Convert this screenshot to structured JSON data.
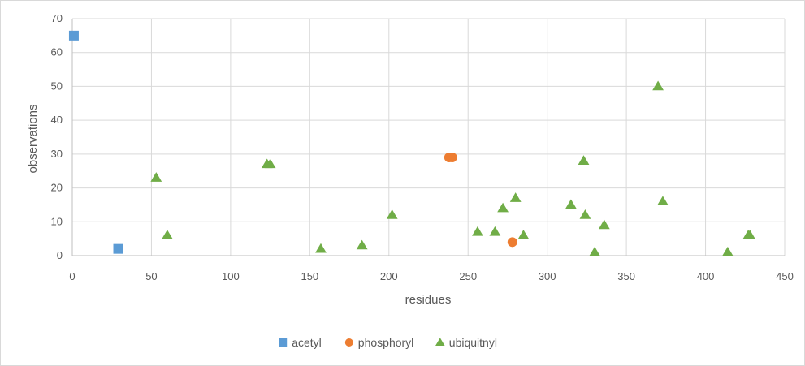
{
  "chart_data": {
    "type": "scatter",
    "title": "",
    "xlabel": "residues",
    "ylabel": "observations",
    "xlim": [
      0,
      450
    ],
    "ylim": [
      0,
      70
    ],
    "x_ticks": [
      0,
      50,
      100,
      150,
      200,
      250,
      300,
      350,
      400,
      450
    ],
    "y_ticks": [
      0,
      10,
      20,
      30,
      40,
      50,
      60,
      70
    ],
    "grid": true,
    "legend_position": "bottom",
    "series": [
      {
        "name": "acetyl",
        "marker": "square",
        "color": "#5b9bd5",
        "points": [
          [
            1,
            65
          ],
          [
            29,
            2
          ]
        ]
      },
      {
        "name": "phosphoryl",
        "marker": "circle",
        "color": "#ed7d31",
        "points": [
          [
            238,
            29
          ],
          [
            240,
            29
          ],
          [
            278,
            4
          ]
        ]
      },
      {
        "name": "ubiquitnyl",
        "marker": "triangle",
        "color": "#70ad47",
        "points": [
          [
            53,
            23
          ],
          [
            60,
            6
          ],
          [
            123,
            27
          ],
          [
            125,
            27
          ],
          [
            157,
            2
          ],
          [
            183,
            3
          ],
          [
            202,
            12
          ],
          [
            256,
            7
          ],
          [
            267,
            7
          ],
          [
            272,
            14
          ],
          [
            280,
            17
          ],
          [
            285,
            6
          ],
          [
            315,
            15
          ],
          [
            323,
            28
          ],
          [
            324,
            12
          ],
          [
            330,
            1
          ],
          [
            336,
            9
          ],
          [
            370,
            50
          ],
          [
            373,
            16
          ],
          [
            414,
            1
          ],
          [
            427,
            6
          ],
          [
            428,
            6
          ]
        ]
      }
    ]
  }
}
